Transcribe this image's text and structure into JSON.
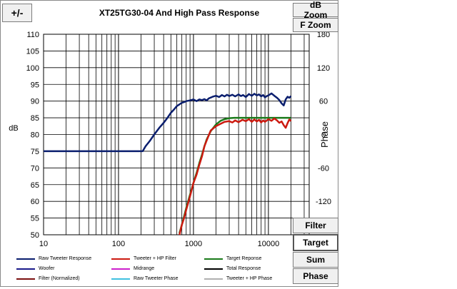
{
  "toolbar": {
    "plus_minus_label": "+/-",
    "db_zoom_label": "dB Zoom",
    "f_zoom_label": "F Zoom",
    "filter_label": "Filter",
    "target_label": "Target",
    "sum_label": "Sum",
    "phase_label": "Phase"
  },
  "chart_data": {
    "type": "line",
    "title": "XT25TG30-04  And High Pass Response",
    "xlabel": "",
    "ylabel": "dB",
    "y2label": "Phase",
    "xscale": "log",
    "xlim": [
      10,
      35000
    ],
    "ylim": [
      50,
      110
    ],
    "y2lim": [
      -180,
      180
    ],
    "x_ticks": [
      {
        "value": 10,
        "label": "10"
      },
      {
        "value": 100,
        "label": "100"
      },
      {
        "value": 1000,
        "label": "1000"
      },
      {
        "value": 10000,
        "label": "10000"
      }
    ],
    "y_ticks": [
      50,
      55,
      60,
      65,
      70,
      75,
      80,
      85,
      90,
      95,
      100,
      105,
      110
    ],
    "y2_ticks": [
      {
        "value": -120,
        "label": "-120"
      },
      {
        "value": -60,
        "label": "-60"
      },
      {
        "value": 0,
        "label": "0"
      },
      {
        "value": 60,
        "label": "60"
      },
      {
        "value": 120,
        "label": "120"
      },
      {
        "value": 180,
        "label": "180"
      }
    ],
    "grid": true,
    "legend_position": "bottom",
    "legend": [
      {
        "name": "Raw Tweeter Response",
        "color": "#0a1e6e"
      },
      {
        "name": "Tweeter + HP Filter",
        "color": "#cc1a10"
      },
      {
        "name": "Target Reponse",
        "color": "#1a7a1a"
      },
      {
        "name": "Woofer",
        "color": "#1a1a8a"
      },
      {
        "name": "Midrange",
        "color": "#cc20cc"
      },
      {
        "name": "Total Response",
        "color": "#000000"
      },
      {
        "name": "Filter (Normalized)",
        "color": "#7a1010"
      },
      {
        "name": "Raw Tweeter Phase",
        "color": "#40c0e0"
      },
      {
        "name": "Tweeter + HP Phase",
        "color": "#b0b0b0"
      }
    ],
    "series": [
      {
        "name": "Raw Tweeter Response",
        "color": "#0a1e6e",
        "x": [
          10,
          100,
          210,
          230,
          260,
          300,
          350,
          400,
          450,
          500,
          550,
          600,
          650,
          700,
          750,
          800,
          900,
          1000,
          1100,
          1200,
          1300,
          1400,
          1500,
          1600,
          1800,
          2000,
          2200,
          2400,
          2600,
          2800,
          3000,
          3300,
          3600,
          4000,
          4300,
          4600,
          5000,
          5500,
          6000,
          6500,
          7000,
          7500,
          8000,
          8500,
          9000,
          9500,
          10000,
          11000,
          12000,
          13000,
          14000,
          15000,
          16000,
          17000,
          18000,
          19000,
          20000
        ],
        "y": [
          75,
          75,
          75,
          76.5,
          78,
          80,
          82,
          83.5,
          85,
          86.5,
          87.5,
          88.5,
          89,
          89.5,
          89.7,
          90,
          90.2,
          90.5,
          90,
          90.5,
          90.3,
          90.6,
          90.2,
          90.8,
          91.3,
          91.6,
          91.2,
          91.8,
          91.4,
          91.9,
          91.5,
          91.9,
          91.4,
          92.0,
          91.5,
          91.8,
          91.2,
          92.1,
          91.6,
          92.2,
          91.7,
          92.0,
          91.4,
          91.8,
          91.1,
          91.5,
          91.7,
          92.3,
          91.6,
          91.0,
          90.3,
          89.3,
          88.7,
          90.5,
          91.3,
          91.0,
          91.5
        ]
      },
      {
        "name": "Target Reponse",
        "color": "#1a7a1a",
        "x": [
          650,
          700,
          750,
          800,
          900,
          1000,
          1100,
          1200,
          1300,
          1400,
          1500,
          1700,
          2000,
          2300,
          2600,
          3000,
          3500,
          4000,
          5000,
          6000,
          8000,
          10000,
          15000,
          20000
        ],
        "y": [
          50.5,
          53,
          55.5,
          58,
          62,
          65.5,
          68.5,
          71.5,
          74,
          76.5,
          78.5,
          81,
          83,
          84.1,
          84.6,
          84.9,
          85,
          85,
          85,
          85,
          85,
          85,
          85,
          85
        ]
      },
      {
        "name": "Tweeter + HP Filter",
        "color": "#cc1a10",
        "x": [
          650,
          700,
          750,
          800,
          900,
          1000,
          1100,
          1200,
          1300,
          1400,
          1500,
          1700,
          2000,
          2300,
          2600,
          3000,
          3300,
          3600,
          4000,
          4500,
          5000,
          5500,
          6000,
          6500,
          7000,
          7500,
          8000,
          8500,
          9000,
          10000,
          11000,
          12000,
          13000,
          14000,
          15000,
          16000,
          17000,
          18000,
          19000,
          20000
        ],
        "y": [
          50,
          53,
          55,
          57.5,
          61.5,
          65.5,
          68,
          71,
          73.5,
          76.5,
          78.2,
          81.2,
          82.5,
          83.2,
          83.8,
          84,
          83.6,
          84.2,
          83.7,
          84.4,
          84,
          84.6,
          83.8,
          84.5,
          83.9,
          84.4,
          83.6,
          84.2,
          83.8,
          84.6,
          84.1,
          84.8,
          84.2,
          83.5,
          83.9,
          82.8,
          82.0,
          83.4,
          84.5,
          84.0
        ]
      }
    ]
  }
}
